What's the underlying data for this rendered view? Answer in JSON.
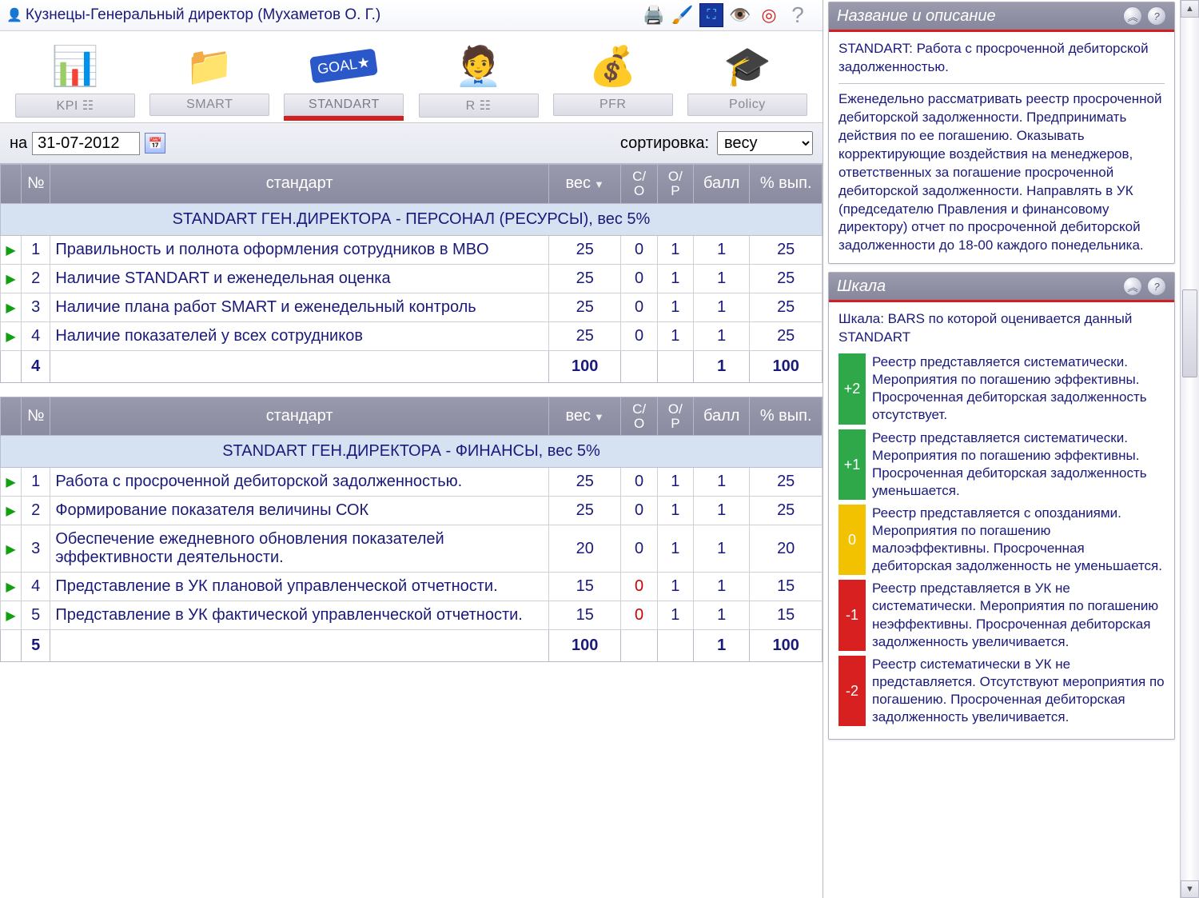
{
  "header": {
    "title": "Кузнецы-Генеральный директор  (Мухаметов О. Г.)"
  },
  "tabs": [
    {
      "label": "KPI  ☷"
    },
    {
      "label": "SMART"
    },
    {
      "label": "STANDART"
    },
    {
      "label": "R  ☷"
    },
    {
      "label": "PFR"
    },
    {
      "label": "Policy"
    }
  ],
  "filter": {
    "date_label": "на",
    "date_value": "31-07-2012",
    "sort_label": "сортировка:",
    "sort_value": "весу"
  },
  "columns": {
    "num": "№",
    "standard": "стандарт",
    "weight": "вес",
    "so_top": "С/",
    "so_bot": "О",
    "op_top": "О/",
    "op_bot": "Р",
    "score": "балл",
    "pct": "% вып."
  },
  "groups": [
    {
      "title": "STANDART ГЕН.ДИРЕКТОРА - ПЕРСОНАЛ (РЕСУРСЫ), вес 5%",
      "rows": [
        {
          "n": "1",
          "name": "Правильность и полнота оформления сотрудников в MBO",
          "w": "25",
          "so": "0",
          "op": "1",
          "score": "1",
          "pct": "25",
          "so_red": false
        },
        {
          "n": "2",
          "name": "Наличие STANDART и еженедельная оценка",
          "w": "25",
          "so": "0",
          "op": "1",
          "score": "1",
          "pct": "25",
          "so_red": false
        },
        {
          "n": "3",
          "name": "Наличие плана работ SMART и еженедельный контроль",
          "w": "25",
          "so": "0",
          "op": "1",
          "score": "1",
          "pct": "25",
          "so_red": false
        },
        {
          "n": "4",
          "name": "Наличие показателей у всех сотрудников",
          "w": "25",
          "so": "0",
          "op": "1",
          "score": "1",
          "pct": "25",
          "so_red": false
        }
      ],
      "total": {
        "count": "4",
        "w": "100",
        "score": "1",
        "pct": "100"
      }
    },
    {
      "title": "STANDART ГЕН.ДИРЕКТОРА - ФИНАНСЫ, вес 5%",
      "rows": [
        {
          "n": "1",
          "name": "Работа с просроченной дебиторской задолженностью.",
          "w": "25",
          "so": "0",
          "op": "1",
          "score": "1",
          "pct": "25",
          "so_red": false
        },
        {
          "n": "2",
          "name": "Формирование показателя величины СОК",
          "w": "25",
          "so": "0",
          "op": "1",
          "score": "1",
          "pct": "25",
          "so_red": false
        },
        {
          "n": "3",
          "name": "Обеспечение ежедневного обновления показателей эффективности деятельности.",
          "w": "20",
          "so": "0",
          "op": "1",
          "score": "1",
          "pct": "20",
          "so_red": false
        },
        {
          "n": "4",
          "name": "Представление в УК плановой управленческой отчетности.",
          "w": "15",
          "so": "0",
          "op": "1",
          "score": "1",
          "pct": "15",
          "so_red": true
        },
        {
          "n": "5",
          "name": "Представление в УК фактической управленческой отчетности.",
          "w": "15",
          "so": "0",
          "op": "1",
          "score": "1",
          "pct": "15",
          "so_red": true
        }
      ],
      "total": {
        "count": "5",
        "w": "100",
        "score": "1",
        "pct": "100"
      }
    }
  ],
  "panel1": {
    "title": "Название и описание",
    "line1": "STANDART: Работа с просроченной дебиторской задолженностью.",
    "body": "Еженедельно рассматривать реестр просроченной дебиторской задолженности. Предпринимать действия по ее погашению. Оказывать корректирующие воздействия на менеджеров, ответственных за погашение просроченной дебиторской задолженности. Направлять в УК (председателю Правления и финансовому директору) отчет по просроченной дебиторской задолженности до 18-00 каждого понедельника."
  },
  "panel2": {
    "title": "Шкала",
    "intro": "Шкала: BARS по которой оценивается данный STANDART",
    "levels": [
      {
        "val": "+2",
        "color": "#2fa84a",
        "text": "Реестр представляется систематически. Мероприятия по погашению эффективны. Просроченная дебиторская задолженность отсутствует."
      },
      {
        "val": "+1",
        "color": "#2fa84a",
        "text": "Реестр представляется систематически. Мероприятия по погашению эффективны. Просроченная дебиторская задолженность уменьшается."
      },
      {
        "val": "0",
        "color": "#f2c200",
        "text": "Реестр представляется с опозданиями. Мероприятия по погашению малоэффективны. Просроченная дебиторская задолженность не уменьшается."
      },
      {
        "val": "-1",
        "color": "#d82020",
        "text": "Реестр представляется в УК не систематически. Мероприятия по погашению неэффективны. Просроченная дебиторская задолженность увеличивается."
      },
      {
        "val": "-2",
        "color": "#d82020",
        "text": "Реестр систематически в УК не представляется. Отсутствуют мероприятия по погашению. Просроченная дебиторская задолженность увеличивается."
      }
    ]
  }
}
